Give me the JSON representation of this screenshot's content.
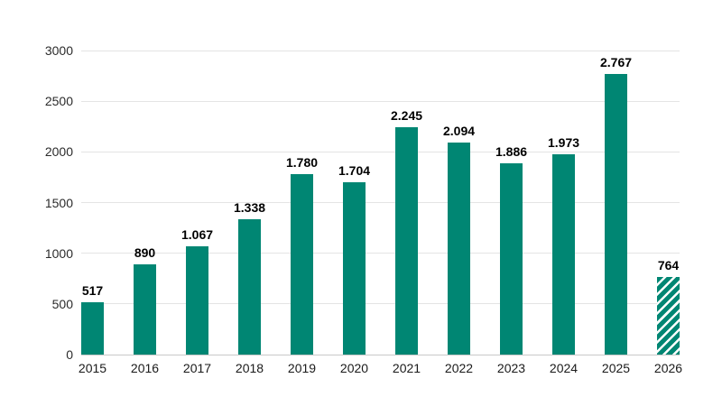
{
  "chart_data": {
    "type": "bar",
    "title": "",
    "xlabel": "",
    "ylabel": "",
    "categories": [
      "2015",
      "2016",
      "2017",
      "2018",
      "2019",
      "2020",
      "2021",
      "2022",
      "2023",
      "2024",
      "2025",
      "2026"
    ],
    "values": [
      517,
      890,
      1067,
      1338,
      1780,
      1704,
      2245,
      2094,
      1886,
      1973,
      2767,
      764
    ],
    "value_labels": [
      "517",
      "890",
      "1.067",
      "1.338",
      "1.780",
      "1.704",
      "2.245",
      "2.094",
      "1.886",
      "1.973",
      "2.767",
      "764"
    ],
    "ylim": [
      0,
      3000
    ],
    "yticks": [
      0,
      500,
      1000,
      1500,
      2000,
      2500,
      3000
    ],
    "ytick_labels": [
      "0",
      "500",
      "1000",
      "1500",
      "2000",
      "2500",
      "3000"
    ],
    "grid": "horizontal",
    "legend": "none",
    "bar_color": "#008673",
    "gridline_color": "#e4e4e4",
    "baseline_color": "#c9c9c9",
    "value_label_color": "#000000",
    "hatched_bars": [
      "2026"
    ],
    "hatch_style": "diagonal-stripes-forward-slash"
  }
}
